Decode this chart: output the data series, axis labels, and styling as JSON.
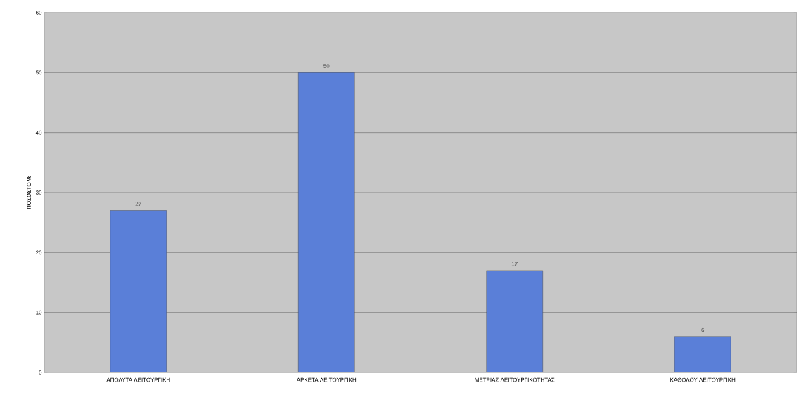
{
  "chart_data": {
    "type": "bar",
    "ylabel": "ΠΟΣΟΣΤΟ %",
    "categories": [
      "ΑΠΟΛΥΤΑ ΛΕΙΤΟΥΡΓΙΚΗ",
      "ΑΡΚΕΤΑ ΛΕΙΤΟΥΡΓΙΚΗ",
      "ΜΕΤΡΙΑΣ ΛΕΙΤΟΥΡΓΙΚΟΤΗΤΑΣ",
      "ΚΑΘΟΛΟΥ ΛΕΙΤΟΥΡΓΙΚΗ"
    ],
    "values": [
      27,
      50,
      17,
      6
    ],
    "color": "#5a7fd8",
    "data_labels": true,
    "ylim": [
      0,
      60
    ],
    "yticks": [
      0,
      10,
      20,
      30,
      40,
      50,
      60
    ],
    "grid": "y"
  }
}
